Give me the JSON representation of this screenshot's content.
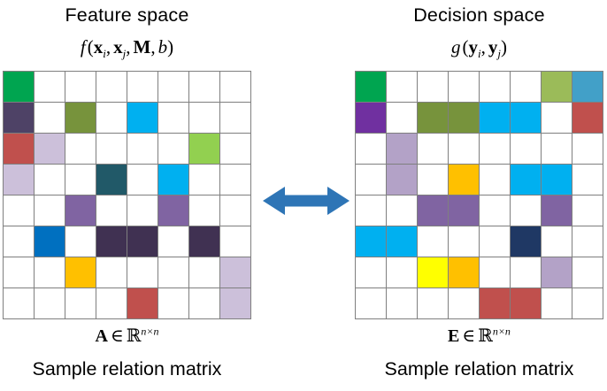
{
  "left": {
    "title": "Feature space",
    "formula": {
      "func": "f",
      "open": "(",
      "arg1": "x",
      "sub1": "i",
      "comma1": ",",
      "arg2": "x",
      "sub2": "j",
      "comma2": ",",
      "param": "M",
      "comma3": ",",
      "bias": "b",
      "close": ")"
    },
    "label": {
      "symbol": "A",
      "element_of": "∈",
      "set": "ℝ",
      "superscript": "n×n"
    },
    "caption": "Sample relation matrix",
    "grid": [
      [
        "#00A550",
        "",
        "",
        "",
        "",
        "",
        "",
        ""
      ],
      [
        "#4E4266",
        "",
        "#77933C",
        "",
        "#00B0F0",
        "",
        "",
        ""
      ],
      [
        "#C0504D",
        "#CCC0DA",
        "",
        "",
        "",
        "",
        "#92D050",
        ""
      ],
      [
        "#CCC0DA",
        "",
        "",
        "#215968",
        "",
        "#00B0F0",
        "",
        ""
      ],
      [
        "",
        "",
        "#8064A2",
        "",
        "",
        "#8064A2",
        "",
        ""
      ],
      [
        "",
        "#0070C0",
        "",
        "#403152",
        "#403152",
        "",
        "#403152",
        ""
      ],
      [
        "",
        "",
        "#FFC000",
        "",
        "",
        "",
        "",
        "#CCC0DA"
      ],
      [
        "",
        "",
        "",
        "",
        "#C0504D",
        "",
        "",
        "#CCC0DA"
      ]
    ]
  },
  "right": {
    "title": "Decision space",
    "formula": {
      "func": "g",
      "open": "(",
      "arg1": "y",
      "sub1": "i",
      "comma1": ",",
      "arg2": "y",
      "sub2": "j",
      "close": ")"
    },
    "label": {
      "symbol": "E",
      "element_of": "∈",
      "set": "ℝ",
      "superscript": "n×n"
    },
    "caption": "Sample relation matrix",
    "grid": [
      [
        "#00A550",
        "",
        "",
        "",
        "",
        "",
        "#9BBB59",
        "#42A0C8"
      ],
      [
        "#7030A0",
        "",
        "#77933C",
        "#77933C",
        "#00B0F0",
        "#00B0F0",
        "",
        "#C0504D"
      ],
      [
        "",
        "#B3A2C7",
        "",
        "",
        "",
        "",
        "",
        ""
      ],
      [
        "",
        "#B3A2C7",
        "",
        "#FFC000",
        "",
        "#00B0F0",
        "#00B0F0",
        ""
      ],
      [
        "",
        "",
        "#8064A2",
        "#8064A2",
        "",
        "",
        "#8064A2",
        ""
      ],
      [
        "#00B0F0",
        "#00B0F0",
        "",
        "",
        "",
        "#1F3864",
        "",
        ""
      ],
      [
        "",
        "",
        "#FFFF00",
        "#FFC000",
        "",
        "",
        "#B3A2C7",
        ""
      ],
      [
        "",
        "",
        "",
        "",
        "#C0504D",
        "#C0504D",
        "",
        ""
      ]
    ]
  },
  "arrow": {
    "color": "#2E75B6"
  },
  "grid_style": {
    "line_color": "#7F7F7F",
    "cell_background": "#FFFFFF"
  }
}
